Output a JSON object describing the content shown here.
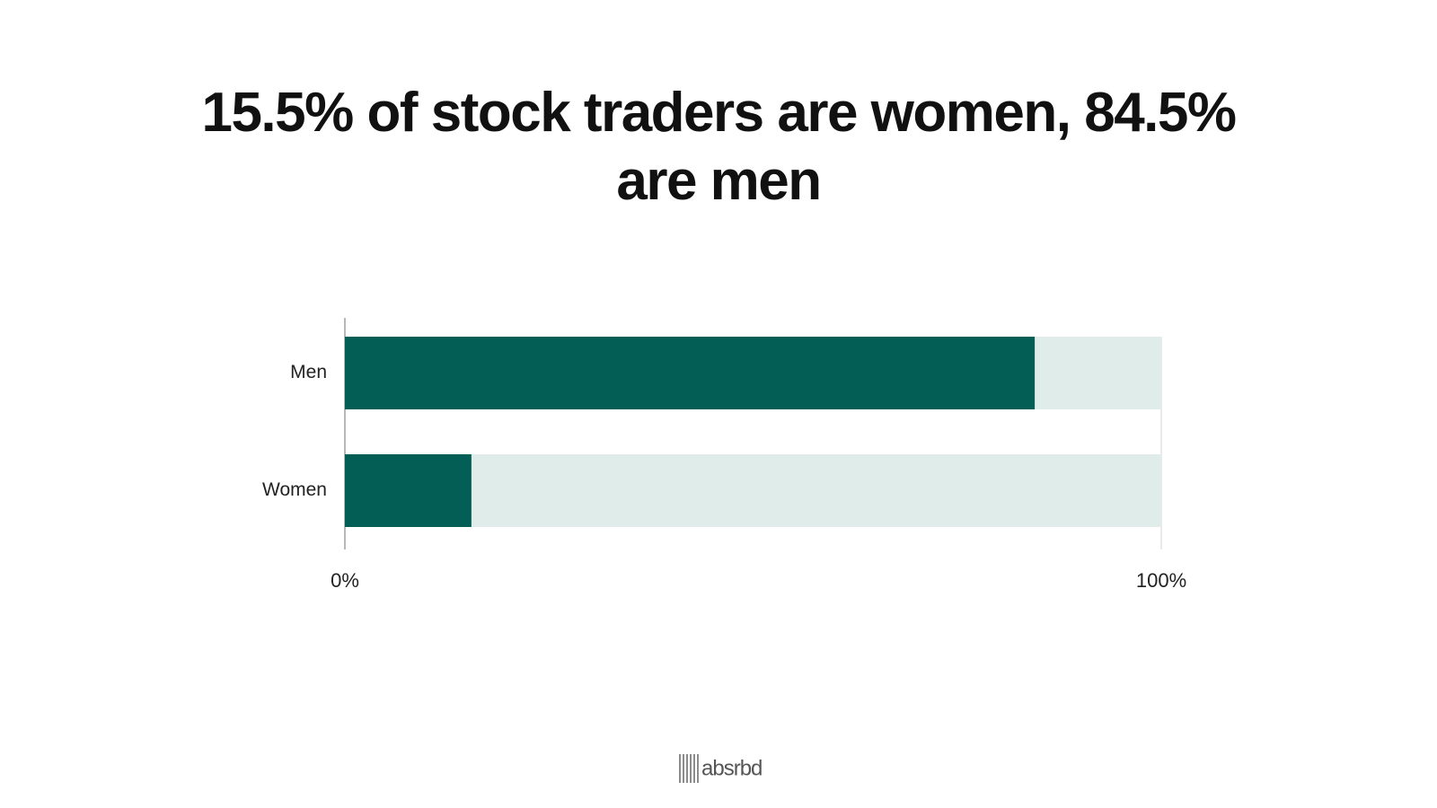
{
  "chart_data": {
    "type": "hbar",
    "title": "15.5% of stock traders are women, 84.5% are men",
    "categories": [
      "Men",
      "Women"
    ],
    "values": [
      84.5,
      15.5
    ],
    "color": "#035f55",
    "track_color": "#dfece9",
    "xlim": [
      0,
      100
    ],
    "xticks": [
      {
        "value": 0,
        "label": "0%"
      },
      {
        "value": 100,
        "label": "100%"
      }
    ]
  },
  "brand": "absrbd"
}
